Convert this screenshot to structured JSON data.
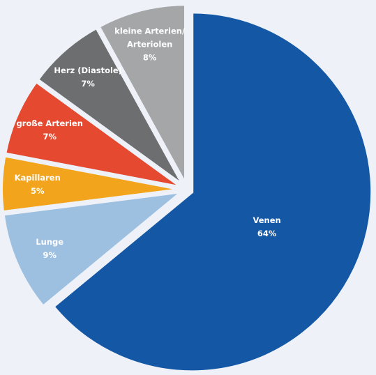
{
  "chart_data": {
    "type": "pie",
    "categories": [
      "Venen",
      "Lunge",
      "Kapillaren",
      "große Arterien",
      "Herz (Diastole)",
      "kleine Arterien/ Arteriolen"
    ],
    "values": [
      64,
      9,
      5,
      7,
      7,
      8
    ],
    "value_labels": [
      "64%",
      "9%",
      "5%",
      "7%",
      "7%",
      "8%"
    ],
    "colors": [
      "#1457a5",
      "#9dbfe0",
      "#f2a51c",
      "#e5492f",
      "#6d6e70",
      "#a5a6a8"
    ]
  }
}
